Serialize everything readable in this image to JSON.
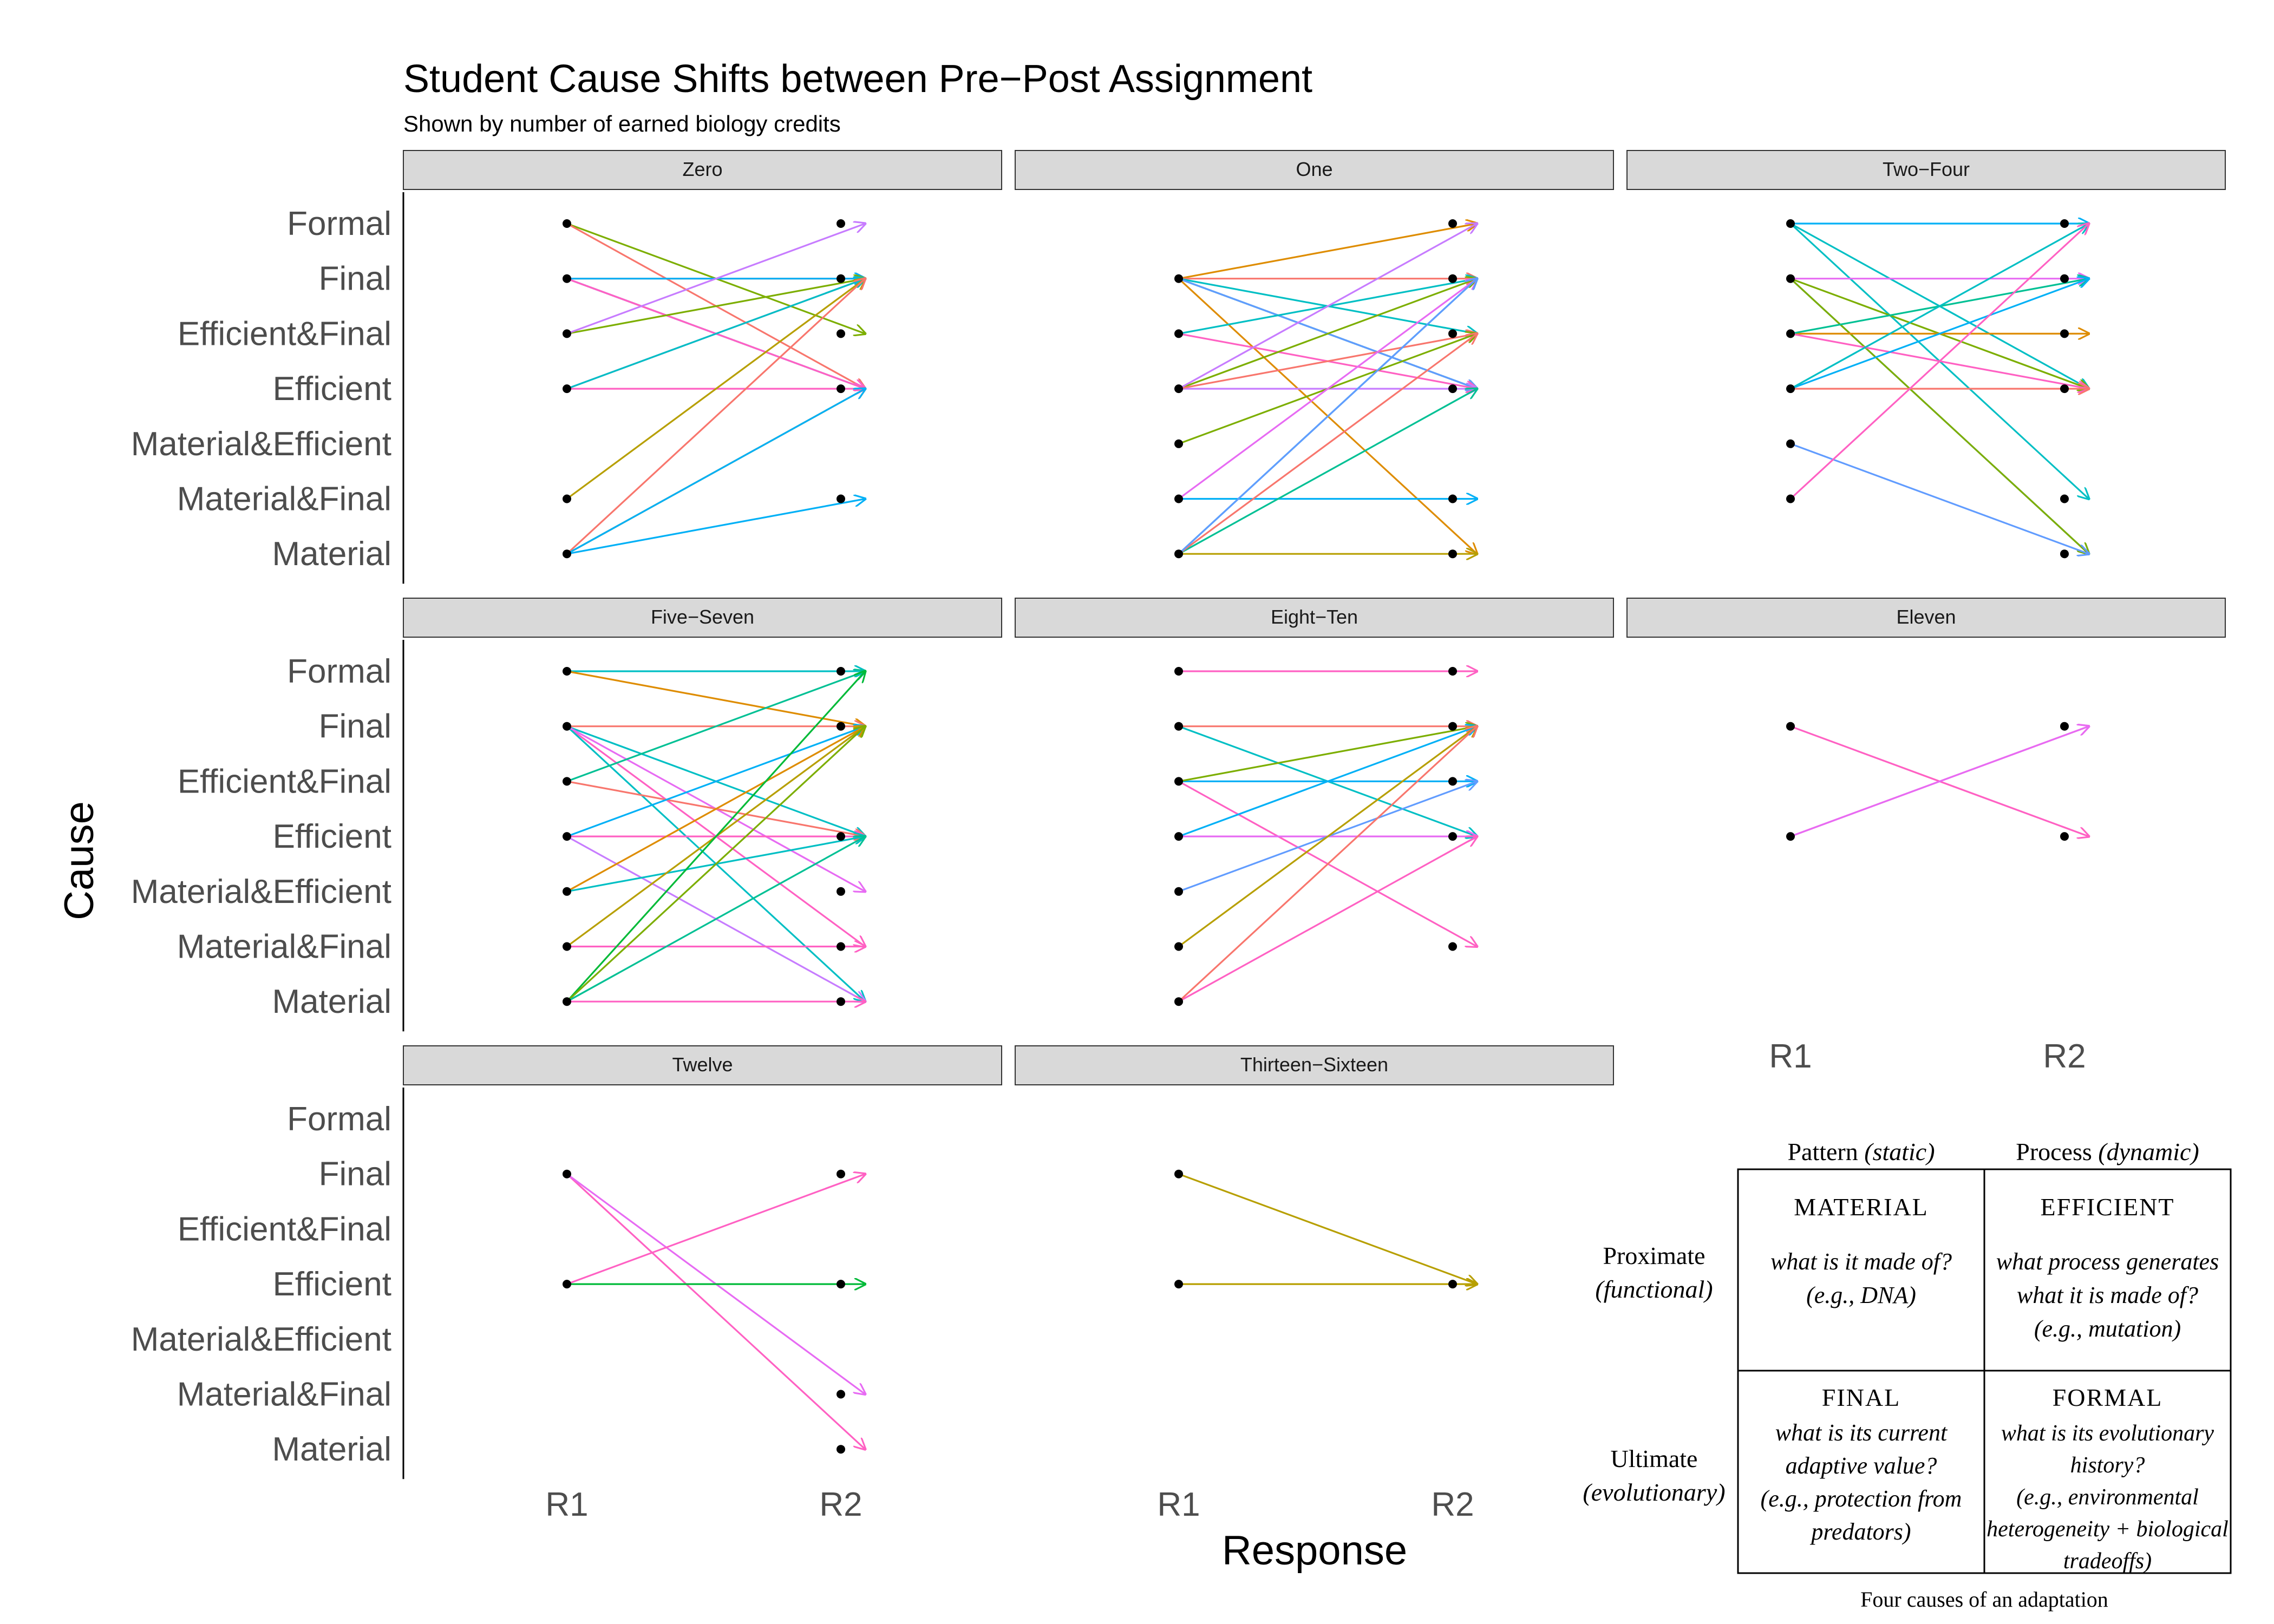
{
  "chart_data": {
    "type": "line",
    "title": "Student Cause Shifts between Pre−Post Assignment",
    "subtitle": "Shown by number of earned biology credits",
    "xlabel": "Response",
    "ylabel": "Cause",
    "x_categories": [
      "R1",
      "R2"
    ],
    "y_categories": [
      "Material",
      "Material&Final",
      "Material&Efficient",
      "Efficient",
      "Efficient&Final",
      "Final",
      "Formal"
    ],
    "facets": [
      {
        "label": "Zero",
        "shifts": [
          {
            "r1": "Formal",
            "r2": "Efficient&Final",
            "color": "#7cae00"
          },
          {
            "r1": "Formal",
            "r2": "Efficient",
            "color": "#f8766d"
          },
          {
            "r1": "Final",
            "r2": "Final",
            "color": "#f8766d"
          },
          {
            "r1": "Final",
            "r2": "Efficient",
            "color": "#00bfc4"
          },
          {
            "r1": "Final",
            "r2": "Efficient",
            "color": "#c77cff"
          },
          {
            "r1": "Final",
            "r2": "Efficient",
            "color": "#ff61c3"
          },
          {
            "r1": "Final",
            "r2": "Final",
            "color": "#00b0f6"
          },
          {
            "r1": "Efficient&Final",
            "r2": "Final",
            "color": "#7cae00"
          },
          {
            "r1": "Efficient&Final",
            "r2": "Formal",
            "color": "#c77cff"
          },
          {
            "r1": "Efficient",
            "r2": "Efficient",
            "color": "#ff61c3"
          },
          {
            "r1": "Efficient",
            "r2": "Final",
            "color": "#e76bf3"
          },
          {
            "r1": "Efficient",
            "r2": "Final",
            "color": "#00bfc4"
          },
          {
            "r1": "Material&Final",
            "r2": "Final",
            "color": "#b79f00"
          },
          {
            "r1": "Material",
            "r2": "Final",
            "color": "#f8766d"
          },
          {
            "r1": "Material",
            "r2": "Efficient",
            "color": "#de8c00"
          },
          {
            "r1": "Material",
            "r2": "Material&Final",
            "color": "#00b0f6"
          },
          {
            "r1": "Material",
            "r2": "Efficient",
            "color": "#00b0f6"
          }
        ]
      },
      {
        "label": "One",
        "shifts": [
          {
            "r1": "Final",
            "r2": "Formal",
            "color": "#de8c00"
          },
          {
            "r1": "Final",
            "r2": "Final",
            "color": "#f8766d"
          },
          {
            "r1": "Final",
            "r2": "Efficient&Final",
            "color": "#00bfc4"
          },
          {
            "r1": "Final",
            "r2": "Efficient",
            "color": "#7cae00"
          },
          {
            "r1": "Final",
            "r2": "Efficient",
            "color": "#00b0f6"
          },
          {
            "r1": "Final",
            "r2": "Efficient",
            "color": "#619cff"
          },
          {
            "r1": "Final",
            "r2": "Material",
            "color": "#de8c00"
          },
          {
            "r1": "Efficient&Final",
            "r2": "Final",
            "color": "#00bfc4"
          },
          {
            "r1": "Efficient&Final",
            "r2": "Efficient",
            "color": "#ff61c3"
          },
          {
            "r1": "Efficient",
            "r2": "Final",
            "color": "#7cae00"
          },
          {
            "r1": "Efficient",
            "r2": "Efficient",
            "color": "#c77cff"
          },
          {
            "r1": "Efficient",
            "r2": "Efficient&Final",
            "color": "#f8766d"
          },
          {
            "r1": "Efficient",
            "r2": "Formal",
            "color": "#c77cff"
          },
          {
            "r1": "Material&Efficient",
            "r2": "Efficient&Final",
            "color": "#7cae00"
          },
          {
            "r1": "Material&Final",
            "r2": "Material&Final",
            "color": "#00b0f6"
          },
          {
            "r1": "Material&Final",
            "r2": "Final",
            "color": "#e76bf3"
          },
          {
            "r1": "Material",
            "r2": "Material",
            "color": "#b79f00"
          },
          {
            "r1": "Material",
            "r2": "Final",
            "color": "#00bfc4"
          },
          {
            "r1": "Material",
            "r2": "Efficient",
            "color": "#00c094"
          },
          {
            "r1": "Material",
            "r2": "Efficient&Final",
            "color": "#f8766d"
          },
          {
            "r1": "Material",
            "r2": "Final",
            "color": "#619cff"
          }
        ]
      },
      {
        "label": "Two−Four",
        "shifts": [
          {
            "r1": "Formal",
            "r2": "Formal",
            "color": "#00b0f6"
          },
          {
            "r1": "Formal",
            "r2": "Efficient",
            "color": "#00bfc4"
          },
          {
            "r1": "Formal",
            "r2": "Material&Final",
            "color": "#00bfc4"
          },
          {
            "r1": "Final",
            "r2": "Final",
            "color": "#e76bf3"
          },
          {
            "r1": "Final",
            "r2": "Efficient",
            "color": "#7cae00"
          },
          {
            "r1": "Final",
            "r2": "Material",
            "color": "#619cff"
          },
          {
            "r1": "Final",
            "r2": "Material",
            "color": "#7cae00"
          },
          {
            "r1": "Efficient&Final",
            "r2": "Efficient&Final",
            "color": "#de8c00"
          },
          {
            "r1": "Efficient&Final",
            "r2": "Final",
            "color": "#00c094"
          },
          {
            "r1": "Efficient&Final",
            "r2": "Efficient",
            "color": "#ff61c3"
          },
          {
            "r1": "Efficient",
            "r2": "Efficient",
            "color": "#f8766d"
          },
          {
            "r1": "Efficient",
            "r2": "Final",
            "color": "#00b0f6"
          },
          {
            "r1": "Efficient",
            "r2": "Formal",
            "color": "#00bfc4"
          },
          {
            "r1": "Material&Efficient",
            "r2": "Material",
            "color": "#619cff"
          },
          {
            "r1": "Material&Final",
            "r2": "Formal",
            "color": "#ff61c3"
          }
        ]
      },
      {
        "label": "Five−Seven",
        "shifts": [
          {
            "r1": "Formal",
            "r2": "Formal",
            "color": "#00bfc4"
          },
          {
            "r1": "Formal",
            "r2": "Final",
            "color": "#de8c00"
          },
          {
            "r1": "Final",
            "r2": "Final",
            "color": "#f8766d"
          },
          {
            "r1": "Final",
            "r2": "Efficient",
            "color": "#00bfc4"
          },
          {
            "r1": "Final",
            "r2": "Material&Final",
            "color": "#ff61c3"
          },
          {
            "r1": "Final",
            "r2": "Material",
            "color": "#00bfc4"
          },
          {
            "r1": "Final",
            "r2": "Material&Efficient",
            "color": "#e76bf3"
          },
          {
            "r1": "Efficient&Final",
            "r2": "Formal",
            "color": "#00c094"
          },
          {
            "r1": "Efficient&Final",
            "r2": "Efficient",
            "color": "#f8766d"
          },
          {
            "r1": "Efficient",
            "r2": "Final",
            "color": "#00b0f6"
          },
          {
            "r1": "Efficient",
            "r2": "Efficient",
            "color": "#ff61c3"
          },
          {
            "r1": "Efficient",
            "r2": "Material",
            "color": "#c77cff"
          },
          {
            "r1": "Material&Efficient",
            "r2": "Final",
            "color": "#de8c00"
          },
          {
            "r1": "Material&Efficient",
            "r2": "Efficient",
            "color": "#00bfc4"
          },
          {
            "r1": "Material&Final",
            "r2": "Final",
            "color": "#b79f00"
          },
          {
            "r1": "Material&Final",
            "r2": "Material&Final",
            "color": "#ff61c3"
          },
          {
            "r1": "Material",
            "r2": "Formal",
            "color": "#00ba38"
          },
          {
            "r1": "Material",
            "r2": "Final",
            "color": "#7cae00"
          },
          {
            "r1": "Material",
            "r2": "Material",
            "color": "#ff61c3"
          },
          {
            "r1": "Material",
            "r2": "Efficient",
            "color": "#00c094"
          }
        ]
      },
      {
        "label": "Eight−Ten",
        "shifts": [
          {
            "r1": "Formal",
            "r2": "Formal",
            "color": "#ff61c3"
          },
          {
            "r1": "Final",
            "r2": "Final",
            "color": "#f8766d"
          },
          {
            "r1": "Final",
            "r2": "Efficient",
            "color": "#00bfc4"
          },
          {
            "r1": "Efficient&Final",
            "r2": "Efficient&Final",
            "color": "#00b0f6"
          },
          {
            "r1": "Efficient&Final",
            "r2": "Material&Final",
            "color": "#ff61c3"
          },
          {
            "r1": "Efficient&Final",
            "r2": "Final",
            "color": "#7cae00"
          },
          {
            "r1": "Efficient",
            "r2": "Efficient",
            "color": "#e76bf3"
          },
          {
            "r1": "Efficient",
            "r2": "Final",
            "color": "#00b0f6"
          },
          {
            "r1": "Material&Efficient",
            "r2": "Efficient&Final",
            "color": "#619cff"
          },
          {
            "r1": "Material&Final",
            "r2": "Final",
            "color": "#b79f00"
          },
          {
            "r1": "Material",
            "r2": "Efficient",
            "color": "#ff61c3"
          },
          {
            "r1": "Material",
            "r2": "Final",
            "color": "#f8766d"
          }
        ]
      },
      {
        "label": "Eleven",
        "shifts": [
          {
            "r1": "Final",
            "r2": "Efficient",
            "color": "#ff61c3"
          },
          {
            "r1": "Efficient",
            "r2": "Final",
            "color": "#ff61c3"
          },
          {
            "r1": "Efficient",
            "r2": "Final",
            "color": "#e76bf3"
          }
        ]
      },
      {
        "label": "Twelve",
        "shifts": [
          {
            "r1": "Final",
            "r2": "Material",
            "color": "#ff61c3"
          },
          {
            "r1": "Final",
            "r2": "Material&Final",
            "color": "#e76bf3"
          },
          {
            "r1": "Efficient",
            "r2": "Final",
            "color": "#ff61c3"
          },
          {
            "r1": "Efficient",
            "r2": "Efficient",
            "color": "#00ba38"
          }
        ]
      },
      {
        "label": "Thirteen−Sixteen",
        "shifts": [
          {
            "r1": "Final",
            "r2": "Efficient",
            "color": "#b79f00"
          },
          {
            "r1": "Efficient",
            "r2": "Efficient",
            "color": "#b79f00"
          }
        ]
      }
    ]
  },
  "legend_table": {
    "col_headers": [
      {
        "main": "Pattern ",
        "italic": "(static)"
      },
      {
        "main": "Process ",
        "italic": "(dynamic)"
      }
    ],
    "row_headers": [
      {
        "main": "Proximate",
        "italic": "(functional)"
      },
      {
        "main": "Ultimate",
        "italic": "(evolutionary)"
      }
    ],
    "cells": [
      {
        "title": "MATERIAL",
        "lines": [
          "what is it made of?",
          "(e.g., DNA)"
        ]
      },
      {
        "title": "EFFICIENT",
        "lines": [
          "what process generates",
          "what it is made of?",
          "(e.g., mutation)"
        ]
      },
      {
        "title": "FINAL",
        "lines": [
          "what is its current",
          "adaptive value?",
          "(e.g., protection from",
          "predators)"
        ]
      },
      {
        "title": "FORMAL",
        "lines": [
          "what is its evolutionary",
          "history?",
          "(e.g., environmental",
          "heterogeneity + biological",
          "tradeoffs)"
        ]
      }
    ],
    "caption": "Four causes of an adaptation"
  }
}
